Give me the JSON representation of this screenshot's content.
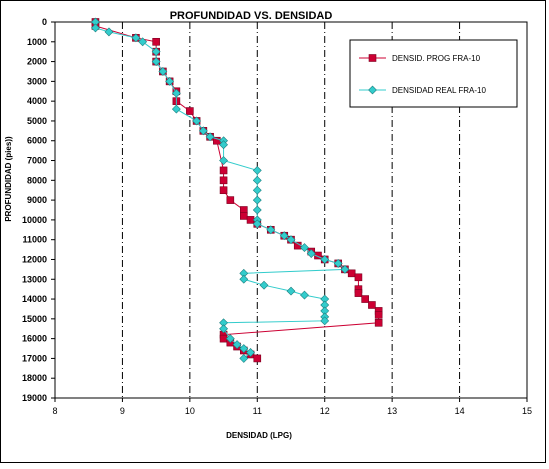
{
  "chart_data": {
    "type": "line",
    "title": "PROFUNDIDAD VS. DENSIDAD",
    "xlabel": "DENSIDAD (LPG)",
    "ylabel": "PROFUNDIDAD (pies))",
    "xlim": [
      8,
      15
    ],
    "ylim": [
      0,
      19000
    ],
    "y_reversed": true,
    "x_ticks": [
      8,
      9,
      10,
      11,
      12,
      13,
      14,
      15
    ],
    "y_ticks": [
      0,
      1000,
      2000,
      3000,
      4000,
      5000,
      6000,
      7000,
      8000,
      9000,
      10000,
      11000,
      12000,
      13000,
      14000,
      15000,
      16000,
      17000,
      18000,
      19000
    ],
    "grid": "vertical dash-dot",
    "legend_position": "top-right",
    "series": [
      {
        "name": "DENSID. PROG FRA-10",
        "marker": "square",
        "color": "#cc0033",
        "points": [
          [
            8.6,
            0
          ],
          [
            8.6,
            200
          ],
          [
            9.2,
            800
          ],
          [
            9.5,
            1000
          ],
          [
            9.5,
            1500
          ],
          [
            9.5,
            2000
          ],
          [
            9.6,
            2500
          ],
          [
            9.7,
            3000
          ],
          [
            9.8,
            3500
          ],
          [
            9.8,
            4000
          ],
          [
            10.0,
            4500
          ],
          [
            10.1,
            5000
          ],
          [
            10.2,
            5500
          ],
          [
            10.3,
            5800
          ],
          [
            10.4,
            6000
          ],
          [
            10.5,
            7500
          ],
          [
            10.5,
            8000
          ],
          [
            10.5,
            8500
          ],
          [
            10.6,
            9000
          ],
          [
            10.8,
            9500
          ],
          [
            10.8,
            9800
          ],
          [
            10.9,
            10000
          ],
          [
            11.0,
            10200
          ],
          [
            11.2,
            10500
          ],
          [
            11.4,
            10800
          ],
          [
            11.5,
            11000
          ],
          [
            11.6,
            11300
          ],
          [
            11.8,
            11600
          ],
          [
            11.9,
            11800
          ],
          [
            12.0,
            12000
          ],
          [
            12.2,
            12200
          ],
          [
            12.3,
            12500
          ],
          [
            12.4,
            12700
          ],
          [
            12.5,
            12900
          ],
          [
            12.5,
            13500
          ],
          [
            12.5,
            13700
          ],
          [
            12.6,
            14000
          ],
          [
            12.7,
            14300
          ],
          [
            12.8,
            14600
          ],
          [
            12.8,
            14800
          ],
          [
            12.8,
            15200
          ],
          [
            10.5,
            15800
          ],
          [
            10.5,
            16000
          ],
          [
            10.6,
            16200
          ],
          [
            10.7,
            16400
          ],
          [
            10.8,
            16600
          ],
          [
            10.9,
            16800
          ],
          [
            11.0,
            17000
          ]
        ]
      },
      {
        "name": "DENSIDAD REAL FRA-10",
        "marker": "diamond",
        "color": "#33cccc",
        "points": [
          [
            8.6,
            0
          ],
          [
            8.6,
            300
          ],
          [
            8.8,
            500
          ],
          [
            9.2,
            800
          ],
          [
            9.3,
            1000
          ],
          [
            9.5,
            1500
          ],
          [
            9.5,
            2000
          ],
          [
            9.6,
            2500
          ],
          [
            9.7,
            3000
          ],
          [
            9.8,
            3600
          ],
          [
            9.8,
            4400
          ],
          [
            10.1,
            5000
          ],
          [
            10.2,
            5500
          ],
          [
            10.3,
            5800
          ],
          [
            10.5,
            6000
          ],
          [
            10.5,
            6200
          ],
          [
            10.5,
            7000
          ],
          [
            11.0,
            7500
          ],
          [
            11.0,
            8000
          ],
          [
            11.0,
            8500
          ],
          [
            11.0,
            9000
          ],
          [
            11.0,
            9500
          ],
          [
            11.0,
            10000
          ],
          [
            11.0,
            10200
          ],
          [
            11.2,
            10500
          ],
          [
            11.4,
            10800
          ],
          [
            11.5,
            11000
          ],
          [
            11.7,
            11400
          ],
          [
            11.8,
            11700
          ],
          [
            12.0,
            12000
          ],
          [
            12.2,
            12200
          ],
          [
            12.3,
            12500
          ],
          [
            10.8,
            12700
          ],
          [
            10.8,
            13000
          ],
          [
            11.1,
            13300
          ],
          [
            11.5,
            13600
          ],
          [
            11.7,
            13800
          ],
          [
            12.0,
            14000
          ],
          [
            12.0,
            14300
          ],
          [
            12.0,
            14600
          ],
          [
            12.0,
            14900
          ],
          [
            12.0,
            15100
          ],
          [
            10.5,
            15200
          ],
          [
            10.5,
            15500
          ],
          [
            10.6,
            16000
          ],
          [
            10.7,
            16300
          ],
          [
            10.8,
            16500
          ],
          [
            10.9,
            16700
          ],
          [
            10.8,
            17000
          ]
        ]
      }
    ]
  }
}
